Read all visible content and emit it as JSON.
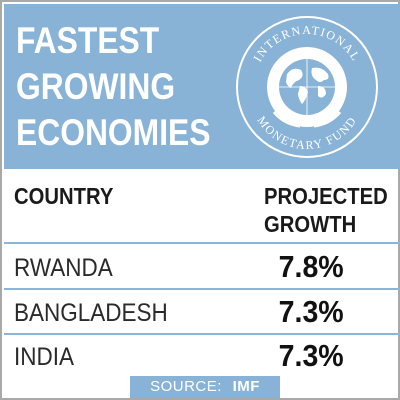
{
  "title_lines": [
    "FASTEST",
    "GROWING",
    "ECONOMIES"
  ],
  "logo": {
    "name": "imf-seal",
    "text": "INTERNATIONAL MONETARY FUND",
    "color": "#ffffff"
  },
  "colors": {
    "header_bg": "#88b3d6",
    "divider": "#8cb6d8",
    "text": "#1a1a1a"
  },
  "chart_data": {
    "type": "table",
    "title": "FASTEST GROWING ECONOMIES",
    "columns": [
      "COUNTRY",
      "PROJECTED GROWTH"
    ],
    "column_header_lines": {
      "country": [
        "COUNTRY"
      ],
      "growth": [
        "PROJECTED",
        "GROWTH"
      ]
    },
    "rows": [
      {
        "country": "RWANDA",
        "growth": "7.8%"
      },
      {
        "country": "BANGLADESH",
        "growth": "7.3%"
      },
      {
        "country": "INDIA",
        "growth": "7.3%"
      }
    ]
  },
  "source": {
    "label": "SOURCE:",
    "value": "IMF"
  }
}
